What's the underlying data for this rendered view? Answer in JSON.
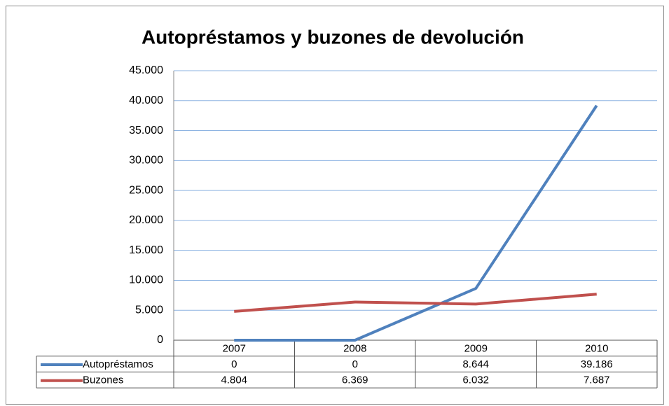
{
  "chart_data": {
    "type": "line",
    "title": "Autopréstamos y buzones de devolución",
    "categories": [
      "2007",
      "2008",
      "2009",
      "2010"
    ],
    "series": [
      {
        "name": "Autopréstamos",
        "color": "#4f81bd",
        "values": [
          0,
          0,
          8644,
          39186
        ],
        "value_labels": [
          "0",
          "0",
          "8.644",
          "39.186"
        ]
      },
      {
        "name": "Buzones",
        "color": "#c0504d",
        "values": [
          4804,
          6369,
          6032,
          7687
        ],
        "value_labels": [
          "4.804",
          "6.369",
          "6.032",
          "7.687"
        ]
      }
    ],
    "ylim": [
      0,
      45000
    ],
    "yticks": [
      0,
      {
        "value": 5000,
        "label": "5.000"
      },
      {
        "value": 10000,
        "label": "10.000"
      },
      {
        "value": 15000,
        "label": "15.000"
      },
      {
        "value": 20000,
        "label": "20.000"
      },
      {
        "value": 25000,
        "label": "25.000"
      },
      {
        "value": 30000,
        "label": "30.000"
      },
      {
        "value": 35000,
        "label": "35.000"
      },
      {
        "value": 40000,
        "label": "40.000"
      },
      {
        "value": 45000,
        "label": "45.000"
      }
    ],
    "grid": true,
    "data_table": true
  }
}
